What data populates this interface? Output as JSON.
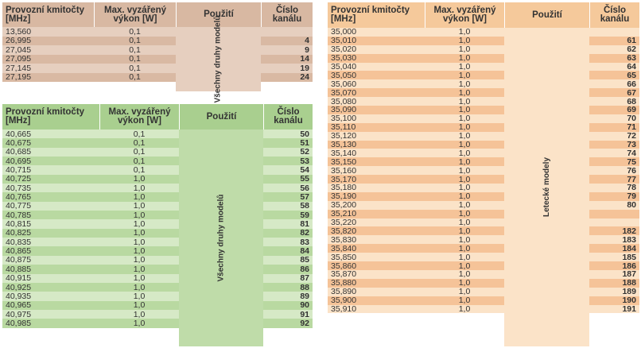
{
  "headers": {
    "freq": "Provozní kmitočty [MHz]",
    "power": "Max. vyzářený výkon [W]",
    "use": "Použití",
    "channel": "Číslo kanálu"
  },
  "table1": {
    "use_label": "Všechny druhy modelů",
    "rows": [
      {
        "freq": "13,560",
        "power": "0,1",
        "ch": ""
      },
      {
        "freq": "26,995",
        "power": "0,1",
        "ch": "4"
      },
      {
        "freq": "27,045",
        "power": "0,1",
        "ch": "9"
      },
      {
        "freq": "27,095",
        "power": "0,1",
        "ch": "14"
      },
      {
        "freq": "27,145",
        "power": "0,1",
        "ch": "19"
      },
      {
        "freq": "27,195",
        "power": "0,1",
        "ch": "24"
      }
    ]
  },
  "table2": {
    "use_label": "Všechny druhy modelů",
    "rows": [
      {
        "freq": "40,665",
        "power": "0,1",
        "ch": "50"
      },
      {
        "freq": "40,675",
        "power": "0,1",
        "ch": "51"
      },
      {
        "freq": "40,685",
        "power": "0,1",
        "ch": "52"
      },
      {
        "freq": "40,695",
        "power": "0,1",
        "ch": "53"
      },
      {
        "freq": "40,715",
        "power": "0,1",
        "ch": "54"
      },
      {
        "freq": "40,725",
        "power": "1,0",
        "ch": "55"
      },
      {
        "freq": "40,735",
        "power": "1,0",
        "ch": "56"
      },
      {
        "freq": "40,765",
        "power": "1,0",
        "ch": "57"
      },
      {
        "freq": "40,775",
        "power": "1,0",
        "ch": "58"
      },
      {
        "freq": "40,785",
        "power": "1,0",
        "ch": "59"
      },
      {
        "freq": "40,815",
        "power": "1,0",
        "ch": "81"
      },
      {
        "freq": "40,825",
        "power": "1,0",
        "ch": "82"
      },
      {
        "freq": "40,835",
        "power": "1,0",
        "ch": "83"
      },
      {
        "freq": "40,865",
        "power": "1,0",
        "ch": "84"
      },
      {
        "freq": "40,875",
        "power": "1,0",
        "ch": "85"
      },
      {
        "freq": "40,885",
        "power": "1,0",
        "ch": "86"
      },
      {
        "freq": "40,915",
        "power": "1,0",
        "ch": "87"
      },
      {
        "freq": "40,925",
        "power": "1,0",
        "ch": "88"
      },
      {
        "freq": "40,935",
        "power": "1,0",
        "ch": "89"
      },
      {
        "freq": "40,965",
        "power": "1,0",
        "ch": "90"
      },
      {
        "freq": "40,975",
        "power": "1,0",
        "ch": "91"
      },
      {
        "freq": "40,985",
        "power": "1,0",
        "ch": "92"
      }
    ]
  },
  "table3": {
    "use_label": "Letecké modely",
    "rows": [
      {
        "freq": "35,000",
        "power": "1,0",
        "ch": ""
      },
      {
        "freq": "35,010",
        "power": "1,0",
        "ch": "61"
      },
      {
        "freq": "35,020",
        "power": "1,0",
        "ch": "62"
      },
      {
        "freq": "35,030",
        "power": "1,0",
        "ch": "63"
      },
      {
        "freq": "35,040",
        "power": "1,0",
        "ch": "64"
      },
      {
        "freq": "35,050",
        "power": "1,0",
        "ch": "65"
      },
      {
        "freq": "35,060",
        "power": "1,0",
        "ch": "66"
      },
      {
        "freq": "35,070",
        "power": "1,0",
        "ch": "67"
      },
      {
        "freq": "35,080",
        "power": "1,0",
        "ch": "68"
      },
      {
        "freq": "35,090",
        "power": "1,0",
        "ch": "69"
      },
      {
        "freq": "35,100",
        "power": "1,0",
        "ch": "70"
      },
      {
        "freq": "35,110",
        "power": "1,0",
        "ch": "71"
      },
      {
        "freq": "35,120",
        "power": "1,0",
        "ch": "72"
      },
      {
        "freq": "35,130",
        "power": "1,0",
        "ch": "73"
      },
      {
        "freq": "35,140",
        "power": "1,0",
        "ch": "74"
      },
      {
        "freq": "35,150",
        "power": "1,0",
        "ch": "75"
      },
      {
        "freq": "35,160",
        "power": "1,0",
        "ch": "76"
      },
      {
        "freq": "35,170",
        "power": "1,0",
        "ch": "77"
      },
      {
        "freq": "35,180",
        "power": "1,0",
        "ch": "78"
      },
      {
        "freq": "35,190",
        "power": "1,0",
        "ch": "79"
      },
      {
        "freq": "35,200",
        "power": "1,0",
        "ch": "80"
      },
      {
        "freq": "35,210",
        "power": "1,0",
        "ch": ""
      },
      {
        "freq": "35,220",
        "power": "1,0",
        "ch": ""
      },
      {
        "freq": "35,820",
        "power": "1,0",
        "ch": "182"
      },
      {
        "freq": "35,830",
        "power": "1,0",
        "ch": "183"
      },
      {
        "freq": "35,840",
        "power": "1,0",
        "ch": "184"
      },
      {
        "freq": "35,850",
        "power": "1,0",
        "ch": "185"
      },
      {
        "freq": "35,860",
        "power": "1,0",
        "ch": "186"
      },
      {
        "freq": "35,870",
        "power": "1,0",
        "ch": "187"
      },
      {
        "freq": "35,880",
        "power": "1,0",
        "ch": "188"
      },
      {
        "freq": "35,890",
        "power": "1,0",
        "ch": "189"
      },
      {
        "freq": "35,900",
        "power": "1,0",
        "ch": "190"
      },
      {
        "freq": "35,910",
        "power": "1,0",
        "ch": "191"
      }
    ]
  },
  "colors": {
    "t1_header": "#d8b8a2",
    "t1_light": "#e6cfbf",
    "t1_dark": "#d9b9a3",
    "t2_header": "#a9cf8f",
    "t2_light": "#d6e9c6",
    "t2_dark": "#b9d9a1",
    "t3_header": "#f5c99b",
    "t3_light": "#fbe3c8",
    "t3_dark": "#f5c398"
  }
}
